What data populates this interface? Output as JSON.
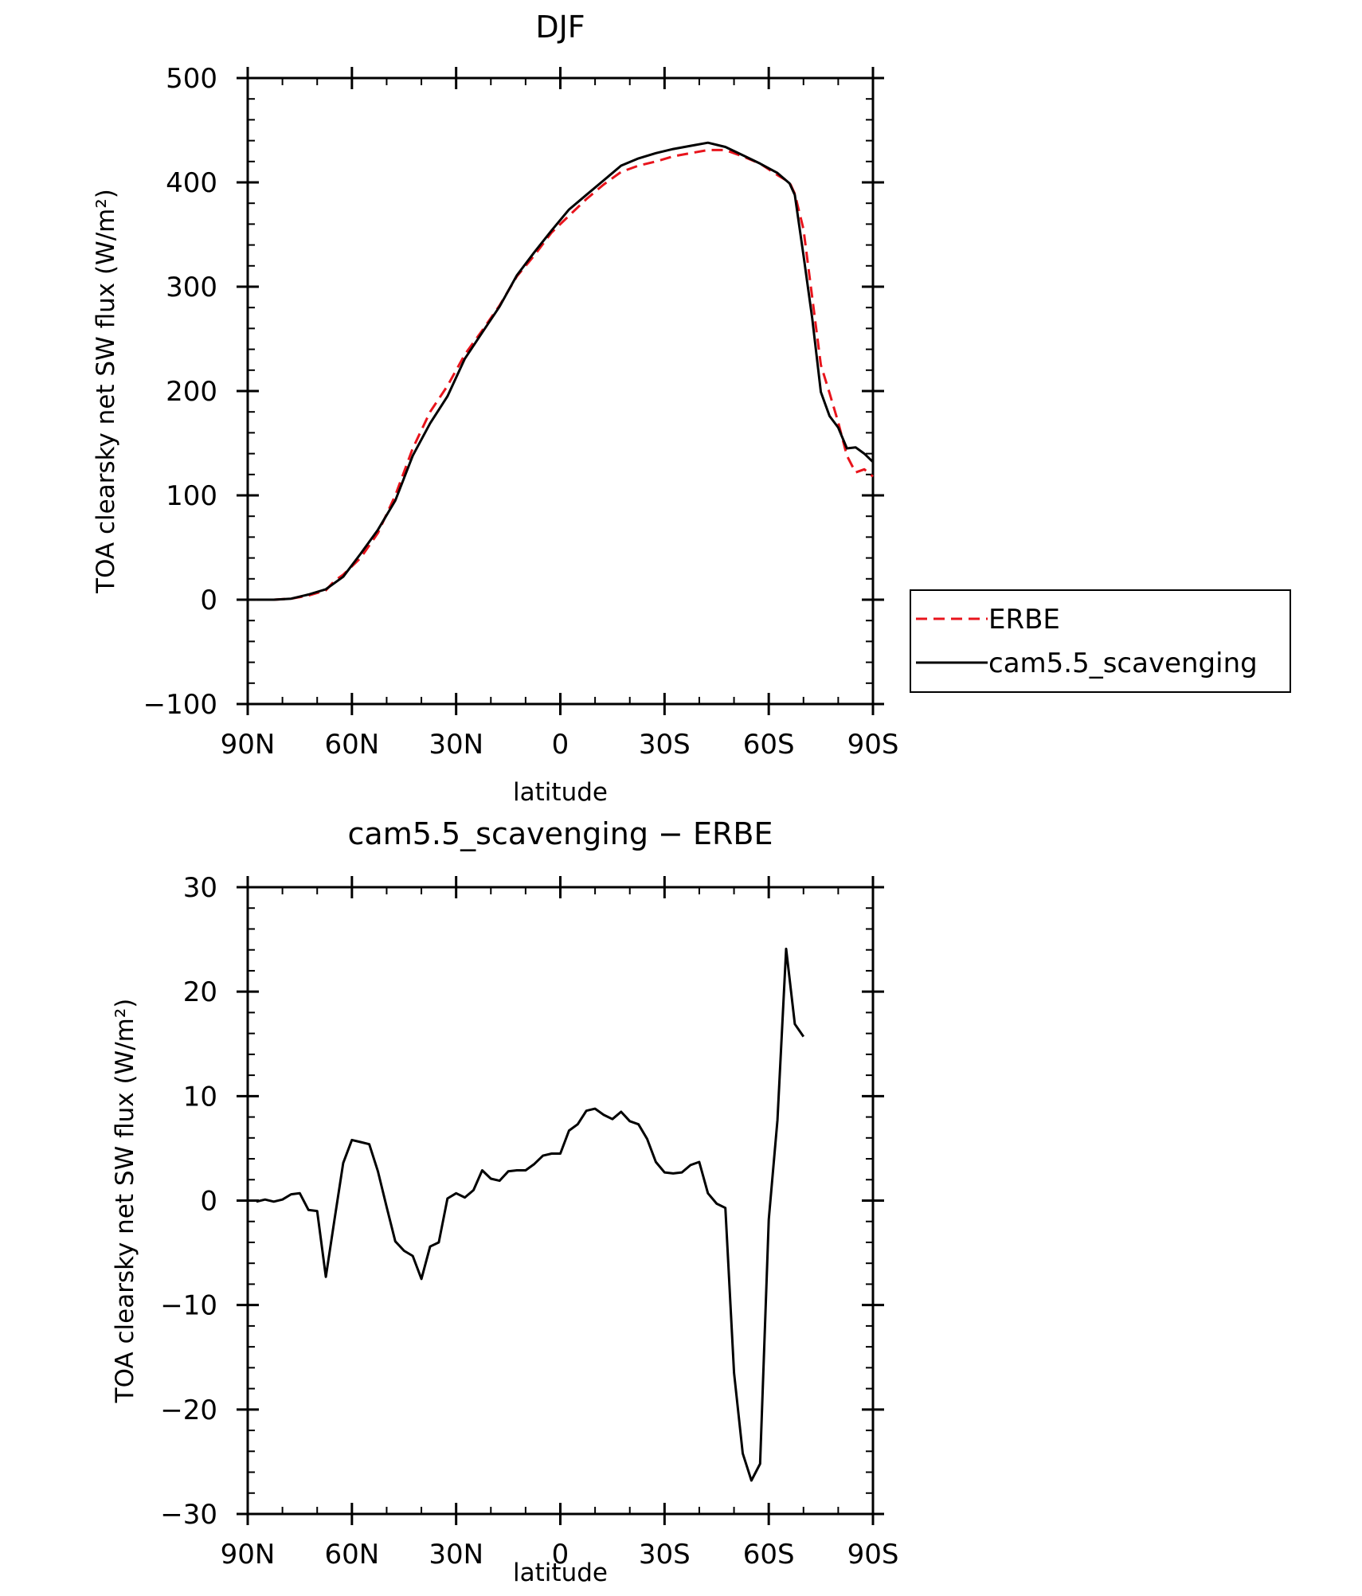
{
  "chart_data": [
    {
      "type": "line",
      "title": "DJF",
      "xlabel": "latitude",
      "ylabel": "TOA clearsky net SW flux (W/m²)",
      "xlim": [
        90,
        -90
      ],
      "ylim": [
        -100,
        500
      ],
      "x_ticks": [
        {
          "value": 90,
          "label": "90N"
        },
        {
          "value": 60,
          "label": "60N"
        },
        {
          "value": 30,
          "label": "30N"
        },
        {
          "value": 0,
          "label": "0"
        },
        {
          "value": -30,
          "label": "30S"
        },
        {
          "value": -60,
          "label": "60S"
        },
        {
          "value": -90,
          "label": "90S"
        }
      ],
      "y_ticks": [
        {
          "value": 500,
          "label": "500"
        },
        {
          "value": 400,
          "label": "400"
        },
        {
          "value": 300,
          "label": "300"
        },
        {
          "value": 200,
          "label": "200"
        },
        {
          "value": 100,
          "label": "100"
        },
        {
          "value": 0,
          "label": "0"
        },
        {
          "value": -100,
          "label": "−100"
        }
      ],
      "legend": "right",
      "series": [
        {
          "name": "ERBE",
          "color": "#e8141c",
          "style": "dashed",
          "points": [
            [
              87.5,
              0
            ],
            [
              82.5,
              0
            ],
            [
              77.5,
              1
            ],
            [
              72.5,
              4
            ],
            [
              67.5,
              9
            ],
            [
              65,
              18
            ],
            [
              62.5,
              24
            ],
            [
              57.5,
              40
            ],
            [
              52.5,
              64
            ],
            [
              47.5,
              100
            ],
            [
              42.5,
              145
            ],
            [
              37.5,
              180
            ],
            [
              32.5,
              205
            ],
            [
              27.5,
              235
            ],
            [
              22.5,
              258
            ],
            [
              17.5,
              282
            ],
            [
              12.5,
              310
            ],
            [
              7.5,
              330
            ],
            [
              2.5,
              352
            ],
            [
              -2.5,
              368
            ],
            [
              -7.5,
              384
            ],
            [
              -12.5,
              398
            ],
            [
              -17.5,
              410
            ],
            [
              -22.5,
              416
            ],
            [
              -27.5,
              420
            ],
            [
              -32.5,
              425
            ],
            [
              -37.5,
              428
            ],
            [
              -42.5,
              431
            ],
            [
              -47.5,
              431
            ],
            [
              -52.5,
              425
            ],
            [
              -57.5,
              418
            ],
            [
              -62.5,
              407
            ],
            [
              -66,
              400
            ],
            [
              -67.5,
              389
            ],
            [
              -70,
              355
            ],
            [
              -72.5,
              290
            ],
            [
              -75,
              225
            ],
            [
              -77.5,
              198
            ],
            [
              -80,
              170
            ],
            [
              -82.5,
              138
            ],
            [
              -85,
              122
            ],
            [
              -87.5,
              125
            ],
            [
              -90,
              118
            ]
          ]
        },
        {
          "name": "cam5.5_scavenging",
          "color": "#000000",
          "style": "solid",
          "points": [
            [
              87.5,
              0
            ],
            [
              82.5,
              0
            ],
            [
              77.5,
              1
            ],
            [
              72.5,
              5
            ],
            [
              67.5,
              10
            ],
            [
              62.5,
              22
            ],
            [
              57.5,
              44
            ],
            [
              52.5,
              67
            ],
            [
              47.5,
              95
            ],
            [
              42.5,
              138
            ],
            [
              37.5,
              169
            ],
            [
              32.5,
              195
            ],
            [
              27.5,
              231
            ],
            [
              22.5,
              256
            ],
            [
              17.5,
              281
            ],
            [
              12.5,
              311
            ],
            [
              7.5,
              333
            ],
            [
              2.5,
              354
            ],
            [
              -2.5,
              374
            ],
            [
              -7.5,
              388
            ],
            [
              -12.5,
              402
            ],
            [
              -17.5,
              416
            ],
            [
              -22.5,
              423
            ],
            [
              -27.5,
              428
            ],
            [
              -32.5,
              432
            ],
            [
              -37.5,
              435
            ],
            [
              -42.5,
              438
            ],
            [
              -47.5,
              434
            ],
            [
              -52.5,
              426
            ],
            [
              -57.5,
              418
            ],
            [
              -62.5,
              409
            ],
            [
              -66,
              399
            ],
            [
              -67.5,
              388
            ],
            [
              -70,
              330
            ],
            [
              -72.5,
              270
            ],
            [
              -75,
              199
            ],
            [
              -77.5,
              176
            ],
            [
              -80,
              165
            ],
            [
              -82.5,
              145
            ],
            [
              -85,
              146
            ],
            [
              -87.5,
              140
            ],
            [
              -90,
              132
            ]
          ]
        }
      ]
    },
    {
      "type": "line",
      "title": "cam5.5_scavenging − ERBE",
      "xlabel": "latitude",
      "ylabel": "TOA clearsky net SW flux (W/m²)",
      "xlim": [
        90,
        -90
      ],
      "ylim": [
        -30,
        30
      ],
      "x_ticks": [
        {
          "value": 90,
          "label": "90N"
        },
        {
          "value": 60,
          "label": "60N"
        },
        {
          "value": 30,
          "label": "30N"
        },
        {
          "value": 0,
          "label": "0"
        },
        {
          "value": -30,
          "label": "30S"
        },
        {
          "value": -60,
          "label": "60S"
        },
        {
          "value": -90,
          "label": "90S"
        }
      ],
      "y_ticks": [
        {
          "value": 30,
          "label": "30"
        },
        {
          "value": 20,
          "label": "20"
        },
        {
          "value": 10,
          "label": "10"
        },
        {
          "value": 0,
          "label": "0"
        },
        {
          "value": -10,
          "label": "−10"
        },
        {
          "value": -20,
          "label": "−20"
        },
        {
          "value": -30,
          "label": "−30"
        }
      ],
      "series": [
        {
          "color": "#000000",
          "style": "solid",
          "points": [
            [
              87.5,
              -0.1
            ],
            [
              85,
              0.1
            ],
            [
              82.5,
              -0.1
            ],
            [
              80,
              0.1
            ],
            [
              77.5,
              0.6
            ],
            [
              75,
              0.7
            ],
            [
              72.5,
              -0.9
            ],
            [
              70,
              -1.0
            ],
            [
              67.5,
              -7.3
            ],
            [
              65,
              -1.8
            ],
            [
              62.5,
              3.6
            ],
            [
              60,
              5.8
            ],
            [
              57.5,
              5.6
            ],
            [
              55,
              5.4
            ],
            [
              52.5,
              2.8
            ],
            [
              50,
              -0.6
            ],
            [
              47.5,
              -3.9
            ],
            [
              45,
              -4.8
            ],
            [
              42.5,
              -5.3
            ],
            [
              40,
              -7.5
            ],
            [
              37.5,
              -4.4
            ],
            [
              35,
              -4.0
            ],
            [
              32.5,
              0.2
            ],
            [
              30,
              0.7
            ],
            [
              27.5,
              0.3
            ],
            [
              25,
              1.0
            ],
            [
              22.5,
              2.9
            ],
            [
              20,
              2.1
            ],
            [
              17.5,
              1.9
            ],
            [
              15,
              2.8
            ],
            [
              12.5,
              2.9
            ],
            [
              10,
              2.9
            ],
            [
              7.5,
              3.5
            ],
            [
              5,
              4.3
            ],
            [
              2.5,
              4.5
            ],
            [
              0,
              4.5
            ],
            [
              -2.5,
              6.7
            ],
            [
              -5,
              7.3
            ],
            [
              -7.5,
              8.6
            ],
            [
              -10,
              8.8
            ],
            [
              -12.5,
              8.2
            ],
            [
              -15,
              7.8
            ],
            [
              -17.5,
              8.5
            ],
            [
              -20,
              7.6
            ],
            [
              -22.5,
              7.3
            ],
            [
              -25,
              5.9
            ],
            [
              -27.5,
              3.7
            ],
            [
              -30,
              2.7
            ],
            [
              -32.5,
              2.6
            ],
            [
              -35,
              2.7
            ],
            [
              -37.5,
              3.4
            ],
            [
              -40,
              3.7
            ],
            [
              -42.5,
              0.7
            ],
            [
              -45,
              -0.3
            ],
            [
              -47.5,
              -0.7
            ],
            [
              -50,
              -16.5
            ],
            [
              -52.5,
              -24.2
            ],
            [
              -55,
              -26.8
            ],
            [
              -57.5,
              -25.2
            ],
            [
              -60,
              -1.8
            ],
            [
              -62.5,
              7.7
            ],
            [
              -65,
              24.1
            ],
            [
              -67.5,
              16.9
            ],
            [
              -70,
              15.7
            ]
          ]
        }
      ]
    }
  ]
}
